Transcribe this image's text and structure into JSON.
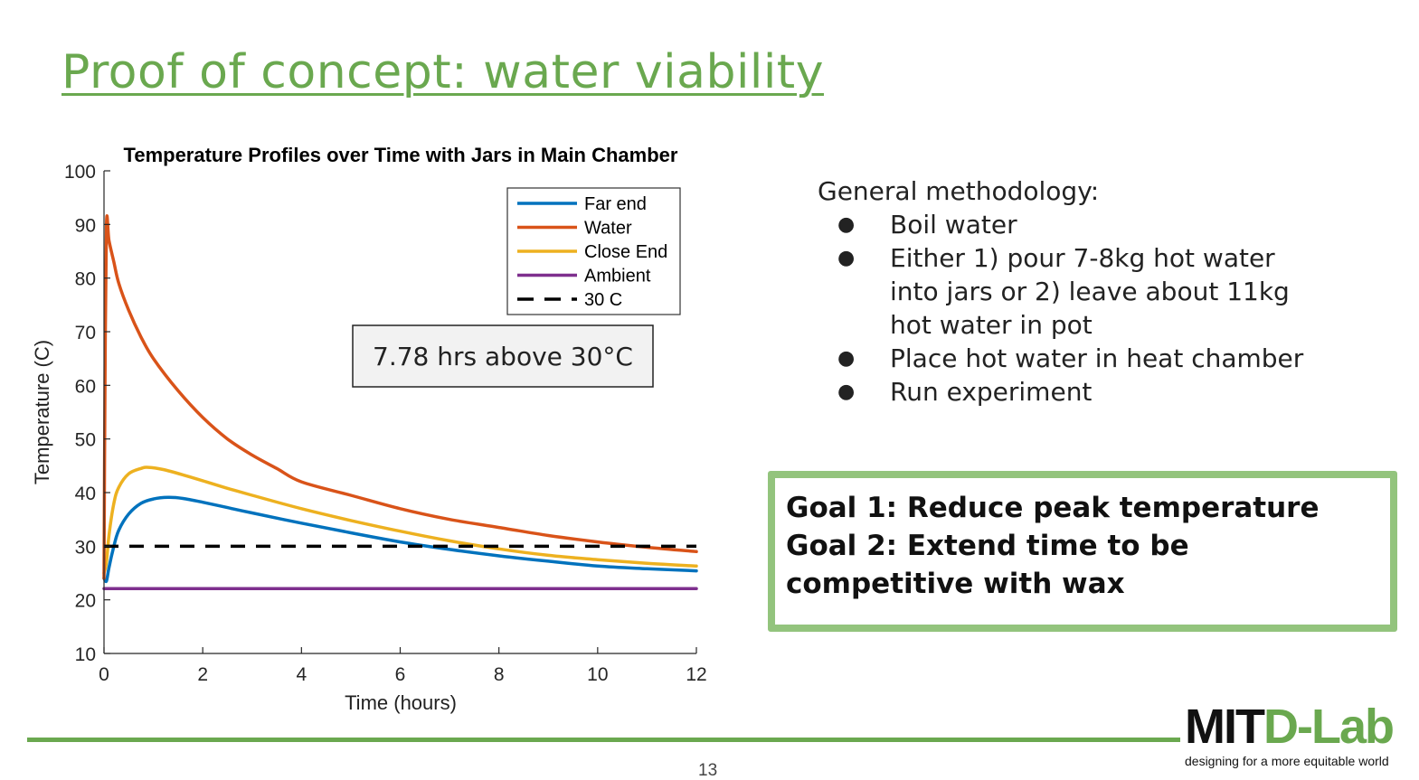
{
  "slide": {
    "title": "Proof of concept: water viability",
    "page_number": "13"
  },
  "methodology": {
    "heading": "General methodology:",
    "items": [
      "Boil water",
      "Either 1) pour 7-8kg hot water into jars or 2) leave about 11kg hot water in pot",
      "Place hot water in heat chamber",
      "Run experiment"
    ]
  },
  "goals": {
    "line1": "Goal 1: Reduce peak temperature",
    "line2": "Goal 2: Extend time to be",
    "line3": "competitive with wax"
  },
  "logo": {
    "mit": "MIT",
    "dlab": "D-Lab",
    "tagline": "designing for a more equitable world"
  },
  "colors": {
    "title_green": "#6aa84f",
    "goal_border": "#93c47d"
  },
  "chart_data": {
    "type": "line",
    "title": "Temperature Profiles over Time with Jars in Main Chamber",
    "xlabel": "Time (hours)",
    "ylabel": "Temperature (C)",
    "xlim": [
      0,
      12
    ],
    "ylim": [
      10,
      100
    ],
    "xticks": [
      0,
      2,
      4,
      6,
      8,
      10,
      12
    ],
    "yticks": [
      10,
      20,
      30,
      40,
      50,
      60,
      70,
      80,
      90,
      100
    ],
    "grid": false,
    "legend_position": "top-right",
    "annotation": "7.78 hrs above 30°C",
    "series": [
      {
        "name": "Far end",
        "color": "#0072bd",
        "style": "solid",
        "x": [
          0,
          0.05,
          0.1,
          0.2,
          0.3,
          0.5,
          0.75,
          1.0,
          1.3,
          1.6,
          2.0,
          2.5,
          3.0,
          4.0,
          5.0,
          6.0,
          7.0,
          8.0,
          9.0,
          10.0,
          11.0,
          12.0
        ],
        "y": [
          24,
          23.5,
          26,
          30,
          33,
          36,
          38,
          38.8,
          39.1,
          38.9,
          38.2,
          37.2,
          36.2,
          34.3,
          32.5,
          30.8,
          29.4,
          28.2,
          27.2,
          26.3,
          25.8,
          25.4
        ]
      },
      {
        "name": "Water",
        "color": "#d95319",
        "style": "solid",
        "x": [
          0,
          0.02,
          0.05,
          0.1,
          0.2,
          0.3,
          0.5,
          0.75,
          1.0,
          1.5,
          2.0,
          2.5,
          3.0,
          3.5,
          4.0,
          5.0,
          6.0,
          7.0,
          8.0,
          9.0,
          10.0,
          11.0,
          12.0
        ],
        "y": [
          24,
          60,
          90,
          87,
          83,
          79,
          74,
          69,
          65,
          59,
          54,
          50,
          47,
          44.5,
          42,
          39.5,
          37,
          35,
          33.5,
          32,
          30.8,
          29.8,
          29
        ]
      },
      {
        "name": "Close End",
        "color": "#edb120",
        "style": "solid",
        "x": [
          0,
          0.05,
          0.1,
          0.2,
          0.3,
          0.5,
          0.75,
          0.9,
          1.2,
          1.6,
          2.0,
          2.5,
          3.0,
          4.0,
          5.0,
          6.0,
          7.0,
          8.0,
          9.0,
          10.0,
          11.0,
          12.0
        ],
        "y": [
          25,
          27,
          32,
          38,
          41,
          43.5,
          44.5,
          44.7,
          44.3,
          43.3,
          42.2,
          40.8,
          39.5,
          37,
          34.8,
          32.8,
          31,
          29.5,
          28.3,
          27.5,
          26.8,
          26.3
        ]
      },
      {
        "name": "Ambient",
        "color": "#7e2f8e",
        "style": "solid",
        "x": [
          0,
          12
        ],
        "y": [
          22.1,
          22.1
        ]
      },
      {
        "name": "30 C",
        "color": "#000000",
        "style": "dashed",
        "x": [
          0,
          12
        ],
        "y": [
          30,
          30
        ]
      }
    ]
  }
}
